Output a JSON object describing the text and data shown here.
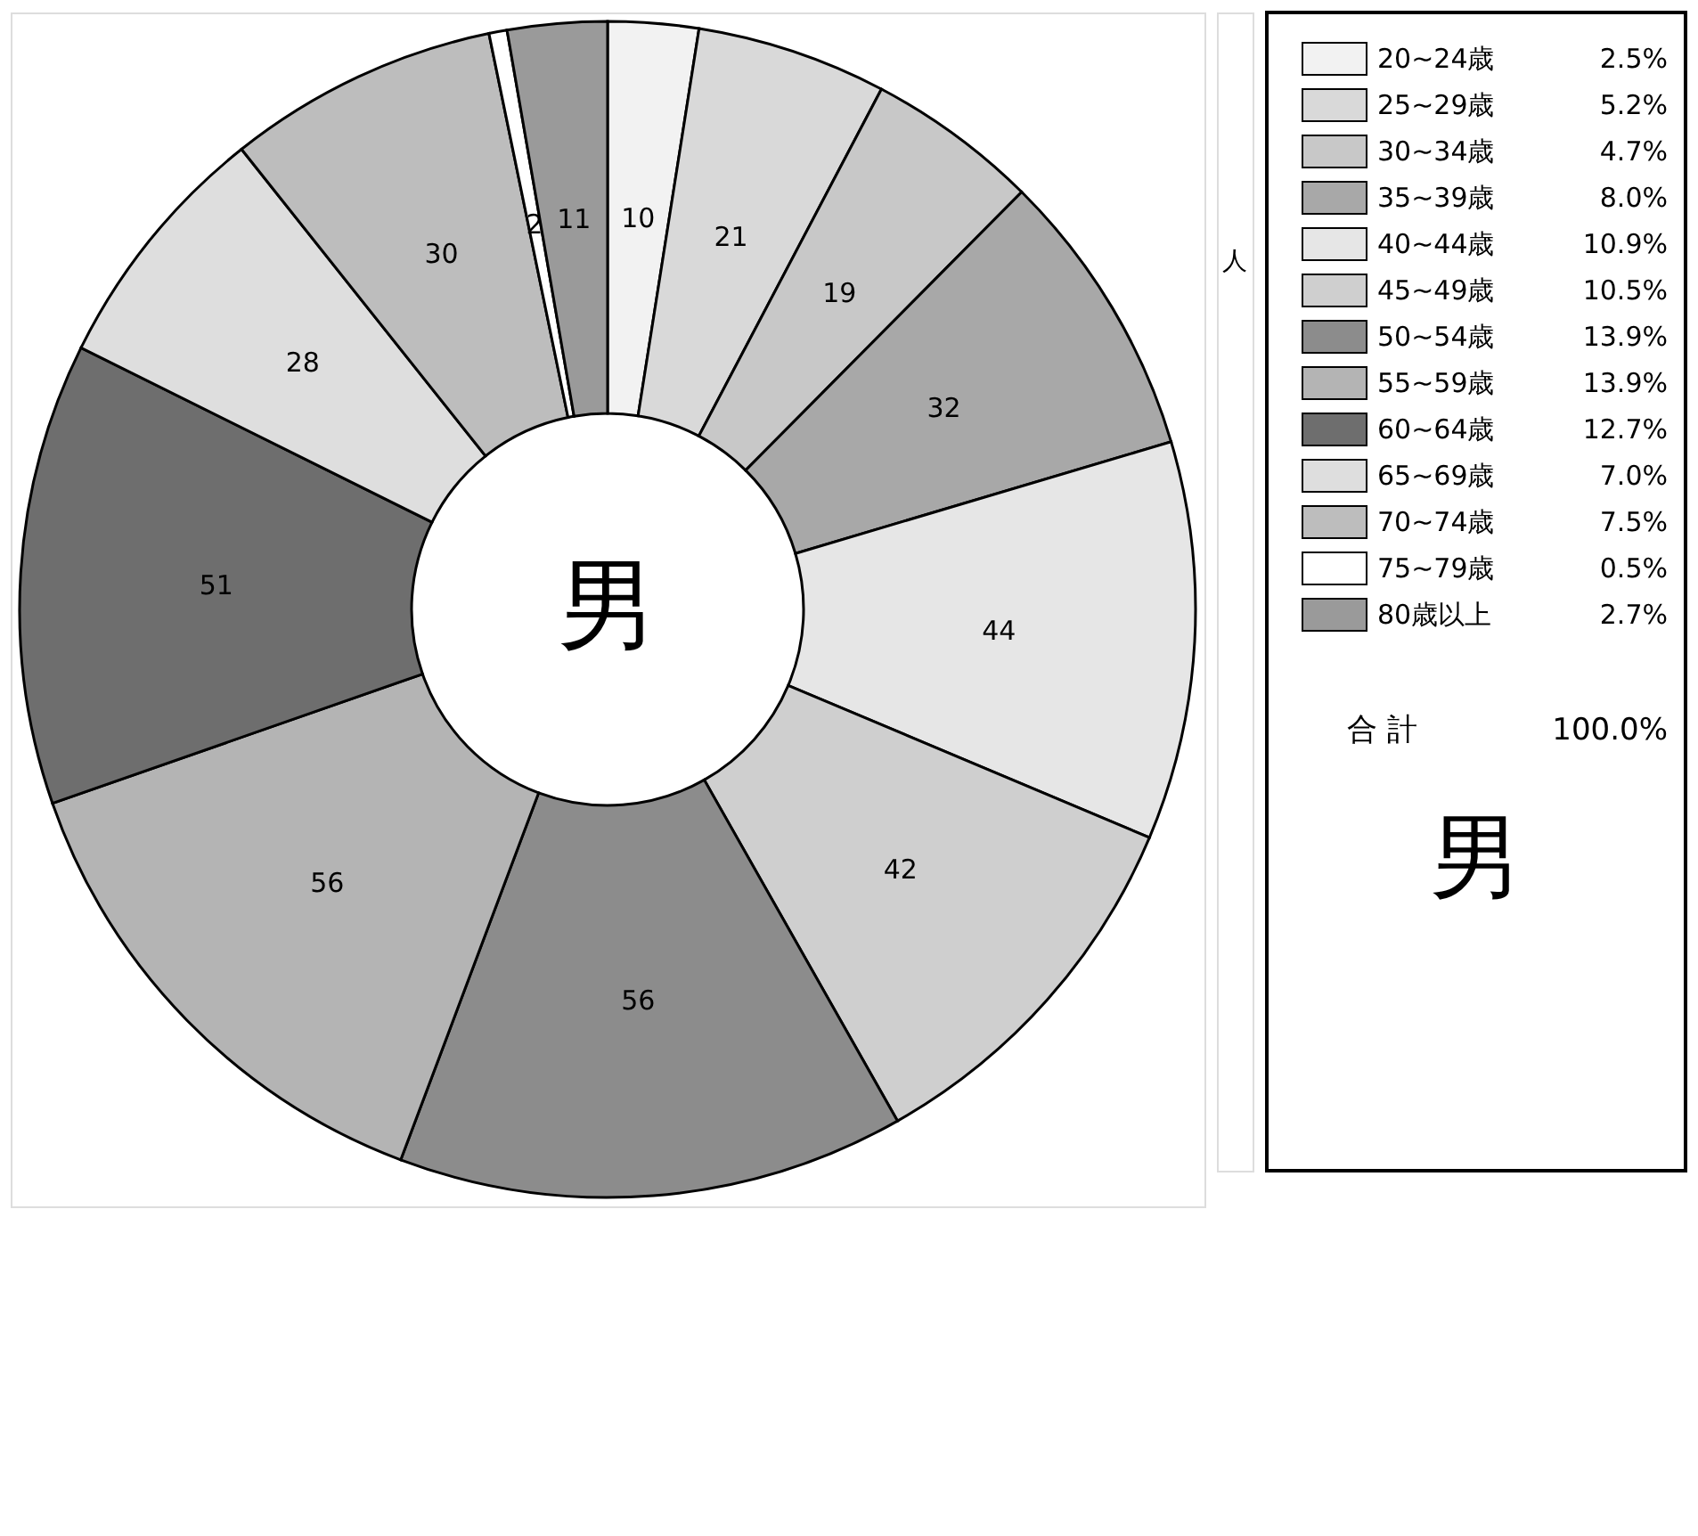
{
  "chart_data": {
    "type": "donut",
    "title": "男",
    "categories": [
      "20~24歳",
      "25~29歳",
      "30~34歳",
      "35~39歳",
      "40~44歳",
      "45~49歳",
      "50~54歳",
      "55~59歳",
      "60~64歳",
      "65~69歳",
      "70~74歳",
      "75~79歳",
      "80歳以上"
    ],
    "values": [
      10,
      21,
      19,
      32,
      44,
      42,
      56,
      56,
      51,
      28,
      30,
      2,
      11
    ],
    "colors": [
      "#f2f2f2",
      "#d9d9d9",
      "#c8c8c8",
      "#a8a8a8",
      "#e6e6e6",
      "#cfcfcf",
      "#8c8c8c",
      "#b4b4b4",
      "#6e6e6e",
      "#dedede",
      "#bdbdbd",
      "#ffffff",
      "#9a9a9a"
    ],
    "data_labels": true,
    "legend": "top right",
    "annotations": [
      "2.5%",
      "5.2%",
      "4.7%",
      "8.0%",
      "10.9%",
      "10.5%",
      "13.9%",
      "13.9%",
      "12.7%",
      "7.0%",
      "7.5%",
      "0.5%",
      "2.7%",
      "合 計",
      "100.0%",
      "男",
      "人"
    ]
  }
}
